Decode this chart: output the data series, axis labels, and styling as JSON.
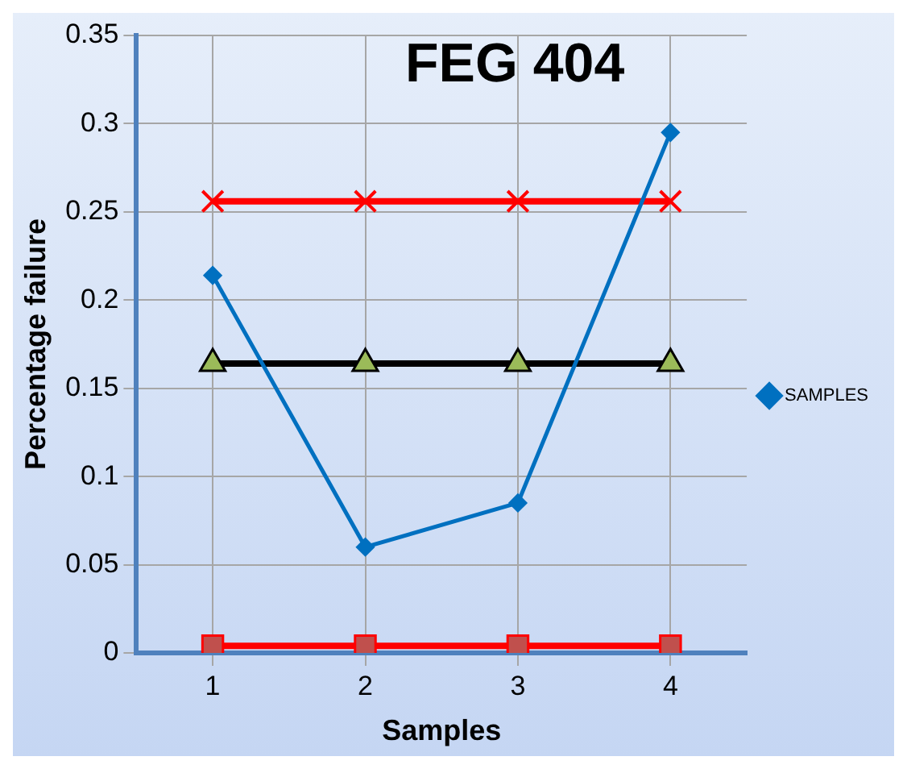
{
  "chart_data": {
    "type": "line",
    "title": "FEG 404",
    "xlabel": "Samples",
    "ylabel": "Percentage failure",
    "categories": [
      "1",
      "2",
      "3",
      "4"
    ],
    "series": [
      {
        "name": "SAMPLES",
        "color": "#0070c0",
        "values": [
          0.214,
          0.06,
          0.085,
          0.295
        ],
        "marker": "diamond"
      },
      {
        "color": "#ff0000",
        "values": [
          0.256,
          0.256,
          0.256,
          0.256
        ],
        "marker": "cross"
      },
      {
        "color": "#000000",
        "values": [
          0.164,
          0.164,
          0.164,
          0.164
        ],
        "marker": "triangle"
      },
      {
        "color": "#ff0000",
        "values": [
          0.004,
          0.004,
          0.004,
          0.004
        ],
        "marker": "square"
      }
    ],
    "ylim": [
      0,
      0.35
    ],
    "yticks": [
      0,
      0.05,
      0.1,
      0.15,
      0.2,
      0.25,
      0.3,
      0.35
    ],
    "grid": true,
    "legend": "right"
  }
}
